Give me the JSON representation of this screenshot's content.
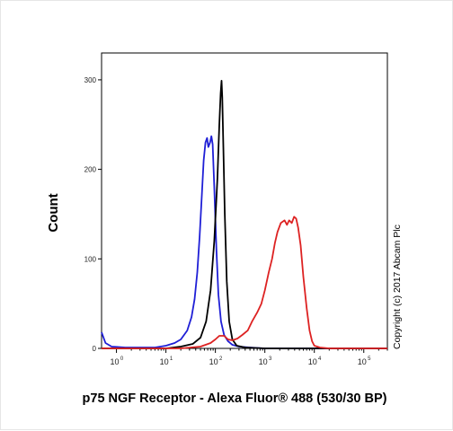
{
  "chart_data": {
    "type": "line",
    "xlabel": "p75 NGF Receptor - Alexa Fluor® 488 (530/30 BP)",
    "ylabel": "Count",
    "annotation": "Copyright (c) 2017 Abcam Plc",
    "x_scale": "log",
    "xlim": [
      0.5,
      300000
    ],
    "ylim": [
      0,
      330
    ],
    "y_ticks": [
      0,
      100,
      200,
      300
    ],
    "x_ticks": [
      {
        "base": "10",
        "exp": "0",
        "value": 1
      },
      {
        "base": "10",
        "exp": "1",
        "value": 10
      },
      {
        "base": "10",
        "exp": "2",
        "value": 100
      },
      {
        "base": "10",
        "exp": "3",
        "value": 1000
      },
      {
        "base": "10",
        "exp": "4",
        "value": 10000
      },
      {
        "base": "10",
        "exp": "5",
        "value": 100000
      }
    ],
    "grid": false,
    "series": [
      {
        "color": "#1f1fd6",
        "points": [
          [
            0.5,
            18
          ],
          [
            0.6,
            6
          ],
          [
            0.8,
            2
          ],
          [
            1.5,
            1
          ],
          [
            3,
            1
          ],
          [
            6,
            1
          ],
          [
            10,
            3
          ],
          [
            15,
            6
          ],
          [
            20,
            10
          ],
          [
            27,
            20
          ],
          [
            33,
            35
          ],
          [
            38,
            55
          ],
          [
            43,
            85
          ],
          [
            48,
            125
          ],
          [
            53,
            170
          ],
          [
            58,
            210
          ],
          [
            63,
            230
          ],
          [
            68,
            235
          ],
          [
            72,
            225
          ],
          [
            78,
            230
          ],
          [
            83,
            237
          ],
          [
            88,
            228
          ],
          [
            95,
            180
          ],
          [
            105,
            110
          ],
          [
            115,
            60
          ],
          [
            130,
            30
          ],
          [
            150,
            15
          ],
          [
            180,
            8
          ],
          [
            220,
            4
          ],
          [
            300,
            2
          ],
          [
            500,
            1
          ],
          [
            1000,
            0
          ],
          [
            300000,
            0
          ]
        ]
      },
      {
        "color": "#000000",
        "points": [
          [
            0.5,
            0
          ],
          [
            10,
            0
          ],
          [
            20,
            2
          ],
          [
            35,
            5
          ],
          [
            50,
            12
          ],
          [
            65,
            30
          ],
          [
            80,
            65
          ],
          [
            95,
            120
          ],
          [
            110,
            190
          ],
          [
            120,
            250
          ],
          [
            128,
            285
          ],
          [
            133,
            299
          ],
          [
            138,
            280
          ],
          [
            145,
            225
          ],
          [
            155,
            150
          ],
          [
            170,
            75
          ],
          [
            190,
            30
          ],
          [
            220,
            10
          ],
          [
            270,
            3
          ],
          [
            400,
            1
          ],
          [
            1000,
            0
          ],
          [
            300000,
            0
          ]
        ]
      },
      {
        "color": "#dd2222",
        "points": [
          [
            0.5,
            0
          ],
          [
            20,
            0
          ],
          [
            50,
            2
          ],
          [
            80,
            6
          ],
          [
            100,
            10
          ],
          [
            120,
            14
          ],
          [
            150,
            14
          ],
          [
            180,
            10
          ],
          [
            220,
            9
          ],
          [
            280,
            11
          ],
          [
            350,
            15
          ],
          [
            450,
            20
          ],
          [
            550,
            30
          ],
          [
            700,
            40
          ],
          [
            850,
            50
          ],
          [
            1000,
            65
          ],
          [
            1200,
            85
          ],
          [
            1400,
            100
          ],
          [
            1600,
            118
          ],
          [
            1800,
            130
          ],
          [
            2100,
            140
          ],
          [
            2500,
            143
          ],
          [
            2800,
            138
          ],
          [
            3100,
            143
          ],
          [
            3500,
            140
          ],
          [
            3900,
            147
          ],
          [
            4300,
            145
          ],
          [
            4700,
            135
          ],
          [
            5300,
            115
          ],
          [
            6000,
            80
          ],
          [
            7000,
            45
          ],
          [
            8000,
            20
          ],
          [
            9000,
            8
          ],
          [
            10000,
            3
          ],
          [
            13000,
            1
          ],
          [
            20000,
            0
          ],
          [
            300000,
            0
          ]
        ]
      }
    ]
  }
}
